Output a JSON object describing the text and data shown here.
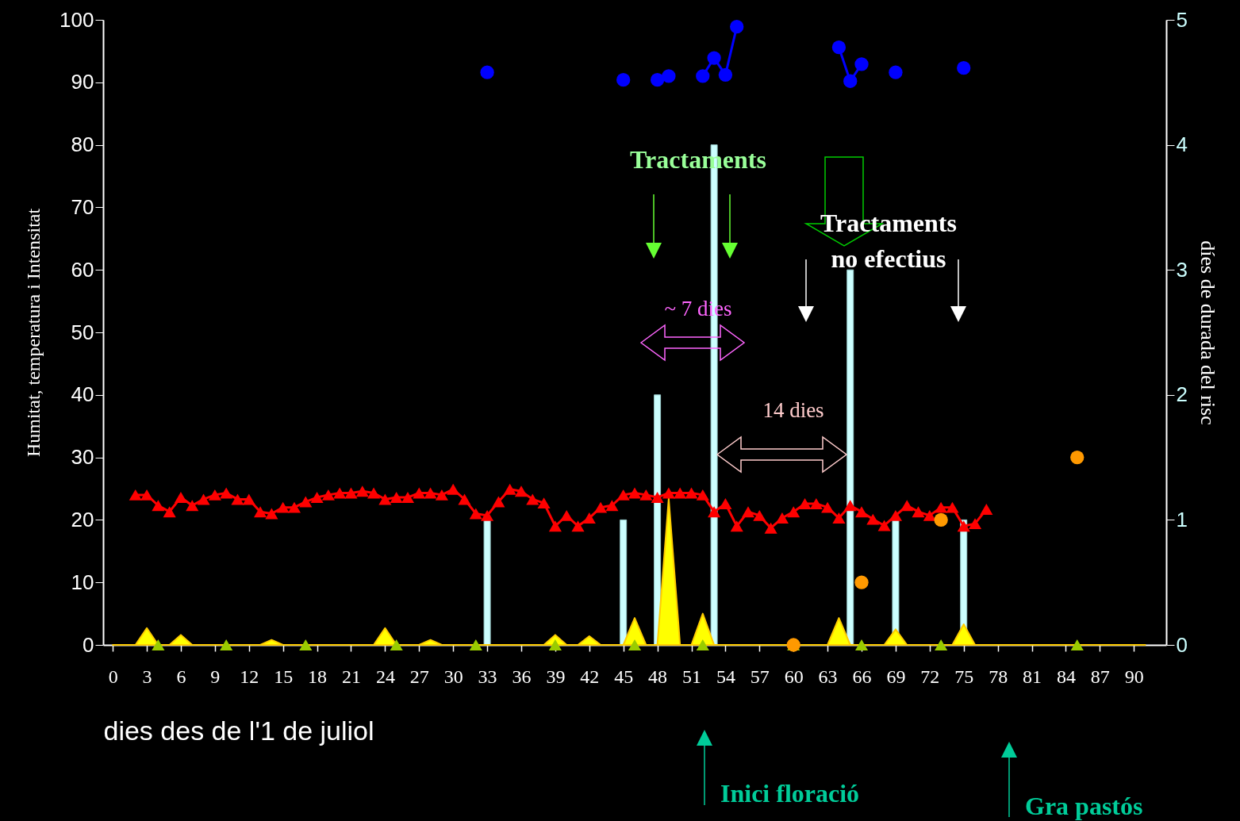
{
  "chart_data": {
    "type": "line",
    "xlabel": "dies des de l'1 de juliol",
    "ylabel": "Humitat, temperatura i Intensitat",
    "y2label": "díes de durada del risc",
    "xlim": [
      -0.5,
      92.5
    ],
    "xticks": [
      0,
      3,
      6,
      9,
      12,
      15,
      18,
      21,
      24,
      27,
      30,
      33,
      36,
      39,
      42,
      45,
      48,
      51,
      54,
      57,
      60,
      63,
      66,
      69,
      72,
      75,
      78,
      81,
      84,
      87,
      90
    ],
    "ylim": [
      0,
      100
    ],
    "yticks": [
      0,
      10,
      20,
      30,
      40,
      50,
      60,
      70,
      80,
      90,
      100
    ],
    "y2lim": [
      0,
      5
    ],
    "y2ticks": [
      0,
      1,
      2,
      3,
      4,
      5
    ],
    "series": [
      {
        "type": "area",
        "color": "#ffff00",
        "x": [
          0,
          2,
          3,
          4,
          5,
          6,
          7,
          13,
          14,
          15,
          23,
          24,
          25,
          27,
          28,
          29,
          38,
          39,
          40,
          41,
          42,
          43,
          45,
          46,
          47,
          48,
          49,
          50,
          51,
          52,
          53,
          63,
          64,
          65,
          68,
          69,
          70,
          74,
          75,
          76,
          91
        ],
        "values": [
          0,
          0,
          2.7,
          0,
          0,
          1.6,
          0,
          0,
          0.8,
          0,
          0,
          2.7,
          0,
          0,
          0.8,
          0,
          0,
          1.6,
          0,
          0,
          1.4,
          0,
          0,
          4.3,
          0,
          0,
          23.4,
          0,
          0,
          5.0,
          0,
          0,
          4.3,
          0,
          0,
          2.5,
          0,
          0,
          3.3,
          0,
          0
        ]
      },
      {
        "type": "bar",
        "axis": "y2",
        "color": "#ccffff",
        "x": [
          33,
          45,
          48,
          53,
          65,
          69,
          75
        ],
        "values": [
          1,
          1,
          2,
          4,
          3,
          1,
          1
        ]
      },
      {
        "color": "#ff0000",
        "marker": "triangle",
        "line_style": "solid",
        "x": [
          2,
          3,
          4,
          5,
          6,
          7,
          8,
          9,
          10,
          11,
          12,
          13,
          14,
          15,
          16,
          17,
          18,
          19,
          20,
          21,
          22,
          23,
          24,
          25,
          26,
          27,
          28,
          29,
          30,
          31,
          32,
          33,
          34,
          35,
          36,
          37,
          38,
          39,
          40,
          41,
          42,
          43,
          44,
          45,
          46,
          47,
          48,
          49,
          50,
          51,
          52,
          53,
          54,
          55,
          56,
          57,
          58,
          59,
          60,
          61,
          62,
          63,
          64,
          65,
          66,
          67,
          68,
          69,
          70,
          71,
          72,
          73,
          74,
          75,
          76,
          77
        ],
        "values": [
          24.0,
          24.0,
          22.3,
          21.3,
          23.6,
          22.3,
          23.3,
          24.0,
          24.3,
          23.3,
          23.3,
          21.3,
          21.0,
          22.0,
          22.0,
          22.9,
          23.6,
          24.0,
          24.3,
          24.3,
          24.6,
          24.3,
          23.3,
          23.6,
          23.6,
          24.3,
          24.3,
          24.0,
          24.9,
          23.3,
          21.0,
          20.7,
          22.9,
          24.9,
          24.6,
          23.3,
          22.7,
          19.0,
          20.7,
          19.0,
          20.3,
          22.0,
          22.3,
          24.0,
          24.3,
          24.0,
          23.6,
          24.3,
          24.3,
          24.3,
          24.0,
          21.3,
          22.6,
          19.0,
          21.3,
          20.7,
          18.7,
          20.3,
          21.3,
          22.6,
          22.6,
          22.0,
          20.3,
          22.3,
          21.3,
          20.1,
          19.1,
          20.7,
          22.3,
          21.3,
          20.7,
          22.0,
          22.0,
          19.0,
          19.4,
          21.7
        ]
      },
      {
        "color": "#0000ff",
        "marker": "circle",
        "line_style": "solid",
        "x": [
          33,
          40,
          45,
          46,
          48,
          49,
          50,
          52,
          53,
          54,
          55,
          60,
          64,
          65,
          66,
          67,
          69,
          70,
          75
        ],
        "values": [
          91.6,
          null,
          90.4,
          null,
          90.4,
          91.0,
          null,
          91.0,
          93.9,
          91.2,
          98.9,
          null,
          95.6,
          90.2,
          92.9,
          null,
          91.6,
          null,
          92.3
        ]
      },
      {
        "type": "scatter",
        "color": "#99cc00",
        "marker": "triangle",
        "x": [
          4,
          10,
          17,
          25,
          32,
          39,
          46,
          52,
          60,
          66,
          73,
          85
        ],
        "values": [
          0,
          0,
          0,
          0,
          0,
          0,
          0,
          0,
          0,
          0,
          0,
          0
        ]
      },
      {
        "type": "scatter",
        "color": "#ff9900",
        "marker": "circle",
        "x": [
          60,
          66,
          73,
          85
        ],
        "values": [
          0,
          10,
          20,
          30
        ]
      }
    ],
    "annotations": [
      "Tractaments",
      "Tractaments no efectius",
      "~ 7 dies",
      "14 dies",
      "Inici floració",
      "Gra pastós"
    ]
  }
}
